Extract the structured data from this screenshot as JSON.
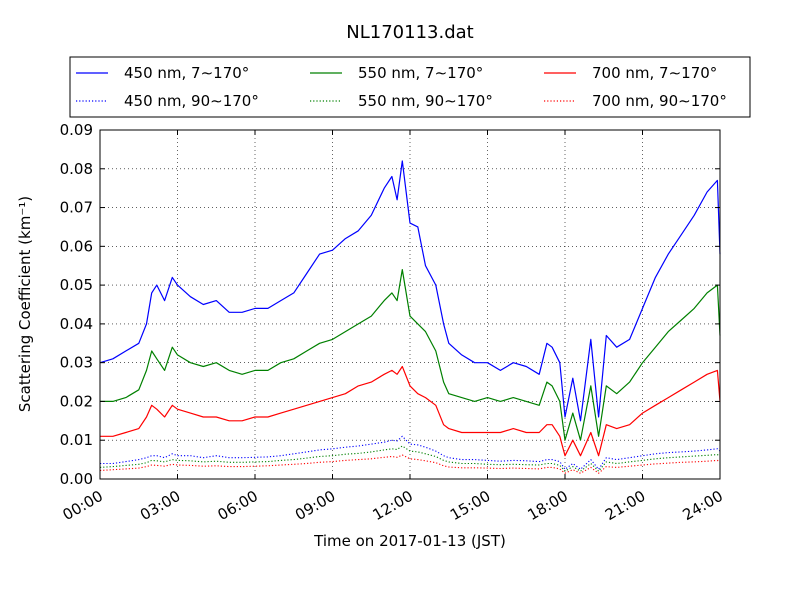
{
  "chart_data": {
    "type": "line",
    "title": "NL170113.dat",
    "xlabel": "Time on 2017-01-13 (JST)",
    "ylabel": "Scattering Coefficient (km⁻¹)",
    "xlim": [
      0,
      24
    ],
    "ylim": [
      0,
      0.09
    ],
    "grid": true,
    "legend_position": "top",
    "x_ticks": [
      "00:00",
      "03:00",
      "06:00",
      "09:00",
      "12:00",
      "15:00",
      "18:00",
      "21:00",
      "24:00"
    ],
    "y_ticks": [
      "0.00",
      "0.01",
      "0.02",
      "0.03",
      "0.04",
      "0.05",
      "0.06",
      "0.07",
      "0.08",
      "0.09"
    ],
    "x": [
      0,
      0.5,
      1.0,
      1.5,
      1.8,
      2.0,
      2.2,
      2.5,
      2.8,
      3.0,
      3.5,
      4.0,
      4.5,
      5.0,
      5.5,
      6.0,
      6.5,
      7.0,
      7.5,
      8.0,
      8.5,
      9.0,
      9.5,
      10.0,
      10.5,
      11.0,
      11.3,
      11.5,
      11.7,
      12.0,
      12.3,
      12.6,
      13.0,
      13.3,
      13.5,
      14.0,
      14.5,
      15.0,
      15.5,
      16.0,
      16.5,
      17.0,
      17.3,
      17.5,
      17.8,
      18.0,
      18.3,
      18.6,
      19.0,
      19.3,
      19.6,
      20.0,
      20.5,
      21.0,
      21.5,
      22.0,
      22.5,
      23.0,
      23.5,
      23.9,
      24.0
    ],
    "series": [
      {
        "name": "450 nm, 7∼170°",
        "color": "#0000ff",
        "dash": "solid",
        "values": [
          0.03,
          0.031,
          0.033,
          0.035,
          0.04,
          0.048,
          0.05,
          0.046,
          0.052,
          0.05,
          0.047,
          0.045,
          0.046,
          0.043,
          0.043,
          0.044,
          0.044,
          0.046,
          0.048,
          0.053,
          0.058,
          0.059,
          0.062,
          0.064,
          0.068,
          0.075,
          0.078,
          0.072,
          0.082,
          0.066,
          0.065,
          0.055,
          0.05,
          0.04,
          0.035,
          0.032,
          0.03,
          0.03,
          0.028,
          0.03,
          0.029,
          0.027,
          0.035,
          0.034,
          0.03,
          0.016,
          0.026,
          0.015,
          0.036,
          0.016,
          0.037,
          0.034,
          0.036,
          0.044,
          0.052,
          0.058,
          0.063,
          0.068,
          0.074,
          0.077,
          0.058
        ]
      },
      {
        "name": "550 nm, 7∼170°",
        "color": "#008000",
        "dash": "solid",
        "values": [
          0.02,
          0.02,
          0.021,
          0.023,
          0.028,
          0.033,
          0.031,
          0.028,
          0.034,
          0.032,
          0.03,
          0.029,
          0.03,
          0.028,
          0.027,
          0.028,
          0.028,
          0.03,
          0.031,
          0.033,
          0.035,
          0.036,
          0.038,
          0.04,
          0.042,
          0.046,
          0.048,
          0.046,
          0.054,
          0.042,
          0.04,
          0.038,
          0.033,
          0.025,
          0.022,
          0.021,
          0.02,
          0.021,
          0.02,
          0.021,
          0.02,
          0.019,
          0.025,
          0.024,
          0.02,
          0.01,
          0.017,
          0.01,
          0.024,
          0.011,
          0.024,
          0.022,
          0.025,
          0.03,
          0.034,
          0.038,
          0.041,
          0.044,
          0.048,
          0.05,
          0.037
        ]
      },
      {
        "name": "700 nm, 7∼170°",
        "color": "#ff0000",
        "dash": "solid",
        "values": [
          0.011,
          0.011,
          0.012,
          0.013,
          0.016,
          0.019,
          0.018,
          0.016,
          0.019,
          0.018,
          0.017,
          0.016,
          0.016,
          0.015,
          0.015,
          0.016,
          0.016,
          0.017,
          0.018,
          0.019,
          0.02,
          0.021,
          0.022,
          0.024,
          0.025,
          0.027,
          0.028,
          0.027,
          0.029,
          0.024,
          0.022,
          0.021,
          0.019,
          0.014,
          0.013,
          0.012,
          0.012,
          0.012,
          0.012,
          0.013,
          0.012,
          0.012,
          0.014,
          0.014,
          0.011,
          0.006,
          0.01,
          0.006,
          0.012,
          0.006,
          0.014,
          0.013,
          0.014,
          0.017,
          0.019,
          0.021,
          0.023,
          0.025,
          0.027,
          0.028,
          0.02
        ]
      },
      {
        "name": "450 nm, 90∼170°",
        "color": "#0000ff",
        "dash": "dotted",
        "values": [
          0.004,
          0.004,
          0.0045,
          0.005,
          0.0055,
          0.006,
          0.006,
          0.0055,
          0.0065,
          0.006,
          0.006,
          0.0055,
          0.006,
          0.0055,
          0.0055,
          0.0056,
          0.0057,
          0.006,
          0.0065,
          0.007,
          0.0075,
          0.0078,
          0.0082,
          0.0085,
          0.009,
          0.0095,
          0.01,
          0.0098,
          0.011,
          0.009,
          0.0088,
          0.0082,
          0.0072,
          0.006,
          0.0055,
          0.005,
          0.005,
          0.0048,
          0.0046,
          0.0048,
          0.0047,
          0.0045,
          0.005,
          0.005,
          0.0045,
          0.0025,
          0.004,
          0.0025,
          0.005,
          0.0025,
          0.0055,
          0.005,
          0.0055,
          0.006,
          0.0065,
          0.0068,
          0.007,
          0.0072,
          0.0075,
          0.0078,
          0.0072
        ]
      },
      {
        "name": "550 nm, 90∼170°",
        "color": "#008000",
        "dash": "dotted",
        "values": [
          0.003,
          0.0032,
          0.0035,
          0.0038,
          0.0042,
          0.0048,
          0.0047,
          0.0044,
          0.005,
          0.0048,
          0.0047,
          0.0044,
          0.0046,
          0.0043,
          0.0043,
          0.0044,
          0.0045,
          0.0048,
          0.005,
          0.0054,
          0.0058,
          0.006,
          0.0064,
          0.0066,
          0.007,
          0.0075,
          0.0078,
          0.0076,
          0.0085,
          0.0072,
          0.007,
          0.0065,
          0.0058,
          0.0048,
          0.0044,
          0.004,
          0.004,
          0.0038,
          0.0037,
          0.0038,
          0.0037,
          0.0036,
          0.004,
          0.004,
          0.0035,
          0.002,
          0.0032,
          0.002,
          0.004,
          0.002,
          0.0044,
          0.004,
          0.0044,
          0.0048,
          0.0052,
          0.0055,
          0.0057,
          0.0059,
          0.0061,
          0.0063,
          0.0058
        ]
      },
      {
        "name": "700 nm, 90∼170°",
        "color": "#ff0000",
        "dash": "dotted",
        "values": [
          0.0022,
          0.0024,
          0.0026,
          0.0028,
          0.0032,
          0.0036,
          0.0035,
          0.0033,
          0.0038,
          0.0036,
          0.0035,
          0.0033,
          0.0034,
          0.0032,
          0.0032,
          0.0033,
          0.0034,
          0.0036,
          0.0038,
          0.004,
          0.0043,
          0.0045,
          0.0048,
          0.005,
          0.0052,
          0.0056,
          0.0058,
          0.0056,
          0.0062,
          0.0052,
          0.005,
          0.0047,
          0.0042,
          0.0034,
          0.0031,
          0.0029,
          0.0029,
          0.0028,
          0.0027,
          0.0028,
          0.0027,
          0.0026,
          0.003,
          0.003,
          0.0026,
          0.0015,
          0.0024,
          0.0015,
          0.003,
          0.0015,
          0.0032,
          0.003,
          0.0033,
          0.0036,
          0.0039,
          0.0041,
          0.0043,
          0.0044,
          0.0046,
          0.0048,
          0.0044
        ]
      }
    ]
  }
}
